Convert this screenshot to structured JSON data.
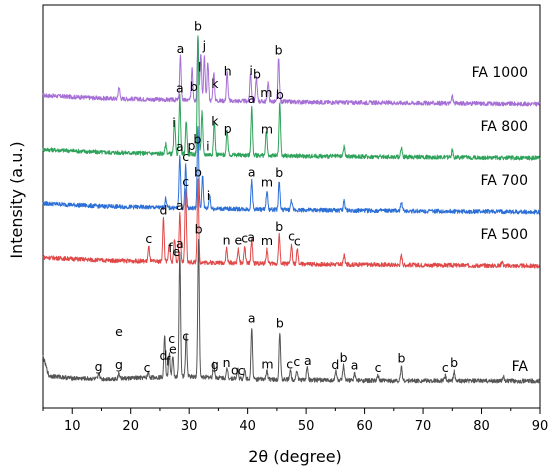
{
  "chart_data": {
    "type": "line",
    "xlabel": "2θ (degree)",
    "ylabel": "Intensity (a.u.)",
    "xlim": [
      5,
      90
    ],
    "x_ticks": [
      10,
      20,
      30,
      40,
      50,
      60,
      70,
      80,
      90
    ],
    "y_ticks_shown": false,
    "grid": false,
    "legend": "none",
    "series": [
      {
        "name": "FA 1000",
        "color": "#a66fd6",
        "offset": 5,
        "base": [
          [
            5,
            0.2
          ],
          [
            15,
            0.14
          ],
          [
            30,
            0.1
          ],
          [
            50,
            0.06
          ],
          [
            70,
            0.04
          ],
          [
            90,
            0.02
          ]
        ],
        "peaks": [
          [
            18,
            0.25
          ],
          [
            28.5,
            0.9
          ],
          [
            30.5,
            0.7
          ],
          [
            31.5,
            1.3
          ],
          [
            32,
            1.0
          ],
          [
            32.6,
            0.9
          ],
          [
            33.2,
            0.8
          ],
          [
            34.2,
            0.6
          ],
          [
            36.5,
            0.6
          ],
          [
            40.5,
            0.6
          ],
          [
            41.5,
            0.5
          ],
          [
            43.5,
            0.4
          ],
          [
            45.3,
            0.9
          ],
          [
            75,
            0.15
          ]
        ],
        "labels": [
          {
            "x": 28.5,
            "t": "a",
            "dy": 0
          },
          {
            "x": 30.8,
            "t": "b",
            "dy": -3
          },
          {
            "x": 31.8,
            "t": "l",
            "dy": -6
          },
          {
            "x": 32.6,
            "t": "j",
            "dy": -3
          },
          {
            "x": 34.4,
            "t": "k",
            "dy": 0
          },
          {
            "x": 36.6,
            "t": "h",
            "dy": 0
          },
          {
            "x": 40.6,
            "t": "i",
            "dy": -1
          },
          {
            "x": 41.6,
            "t": "b",
            "dy": -1
          },
          {
            "x": 43.2,
            "t": "m",
            "dy": 1
          },
          {
            "x": 45.3,
            "t": "b",
            "dy": 0
          }
        ]
      },
      {
        "name": "FA 800",
        "color": "#2fa35b",
        "offset": 4,
        "base": [
          [
            5,
            0.2
          ],
          [
            15,
            0.14
          ],
          [
            30,
            0.1
          ],
          [
            50,
            0.06
          ],
          [
            70,
            0.04
          ],
          [
            90,
            0.02
          ]
        ],
        "peaks": [
          [
            26,
            0.2
          ],
          [
            27.5,
            0.7
          ],
          [
            28.4,
            1.2
          ],
          [
            29.5,
            0.7
          ],
          [
            31.5,
            2.5
          ],
          [
            32.2,
            0.9
          ],
          [
            34.3,
            0.7
          ],
          [
            36.5,
            0.5
          ],
          [
            40.7,
            1.0
          ],
          [
            43.2,
            0.5
          ],
          [
            45.5,
            1.1
          ],
          [
            56.5,
            0.2
          ],
          [
            66.3,
            0.2
          ],
          [
            75,
            0.15
          ]
        ],
        "labels": [
          {
            "x": 27.4,
            "t": "i",
            "dy": 2
          },
          {
            "x": 28.4,
            "t": "a",
            "dy": 0
          },
          {
            "x": 30.4,
            "t": "p",
            "dy": 0
          },
          {
            "x": 31.5,
            "t": "b",
            "dy": 0
          },
          {
            "x": 33.2,
            "t": "i",
            "dy": 0
          },
          {
            "x": 34.4,
            "t": "k",
            "dy": 0
          },
          {
            "x": 36.6,
            "t": "p",
            "dy": 0
          },
          {
            "x": 40.7,
            "t": "a",
            "dy": 0
          },
          {
            "x": 43.3,
            "t": "m",
            "dy": 0
          },
          {
            "x": 45.5,
            "t": "b",
            "dy": 0
          }
        ]
      },
      {
        "name": "FA 700",
        "color": "#2c6fd6",
        "offset": 3,
        "base": [
          [
            5,
            0.2
          ],
          [
            15,
            0.14
          ],
          [
            30,
            0.1
          ],
          [
            50,
            0.06
          ],
          [
            70,
            0.04
          ],
          [
            90,
            0.02
          ]
        ],
        "peaks": [
          [
            26,
            0.2
          ],
          [
            28.4,
            1.1
          ],
          [
            29.4,
            0.9
          ],
          [
            31.5,
            1.7
          ],
          [
            32.3,
            0.7
          ],
          [
            33.5,
            0.3
          ],
          [
            40.7,
            0.6
          ],
          [
            43.3,
            0.4
          ],
          [
            45.4,
            0.6
          ],
          [
            47.5,
            0.2
          ],
          [
            56.5,
            0.2
          ],
          [
            66.3,
            0.2
          ]
        ],
        "labels": [
          {
            "x": 28.4,
            "t": "a",
            "dy": 0
          },
          {
            "x": 29.4,
            "t": "c",
            "dy": 0
          },
          {
            "x": 31.4,
            "t": "b",
            "dy": 0
          },
          {
            "x": 33.3,
            "t": "i",
            "dy": 0
          },
          {
            "x": 40.7,
            "t": "a",
            "dy": 0
          },
          {
            "x": 43.3,
            "t": "m",
            "dy": 0
          },
          {
            "x": 45.4,
            "t": "b",
            "dy": 0
          }
        ]
      },
      {
        "name": "FA 500",
        "color": "#e04848",
        "offset": 2,
        "base": [
          [
            5,
            0.2
          ],
          [
            15,
            0.14
          ],
          [
            30,
            0.1
          ],
          [
            50,
            0.06
          ],
          [
            70,
            0.04
          ],
          [
            90,
            0.02
          ]
        ],
        "peaks": [
          [
            23.1,
            0.3
          ],
          [
            25.6,
            0.9
          ],
          [
            26.6,
            0.4
          ],
          [
            27.5,
            0.5
          ],
          [
            28.4,
            1.0
          ],
          [
            29.4,
            1.5
          ],
          [
            31.5,
            1.7
          ],
          [
            36.4,
            0.3
          ],
          [
            38.4,
            0.3
          ],
          [
            39.5,
            0.35
          ],
          [
            40.7,
            0.5
          ],
          [
            43.3,
            0.3
          ],
          [
            45.4,
            0.6
          ],
          [
            47.5,
            0.4
          ],
          [
            48.5,
            0.3
          ],
          [
            56.5,
            0.2
          ],
          [
            66.3,
            0.2
          ],
          [
            83.5,
            0.1
          ]
        ],
        "labels": [
          {
            "x": 23.1,
            "t": "c",
            "dy": 0
          },
          {
            "x": 25.6,
            "t": "d",
            "dy": 0
          },
          {
            "x": 26.8,
            "t": "f",
            "dy": 0
          },
          {
            "x": 27.8,
            "t": "e",
            "dy": 0
          },
          {
            "x": 28.4,
            "t": "a",
            "dy": 0
          },
          {
            "x": 29.4,
            "t": "c",
            "dy": 0
          },
          {
            "x": 31.5,
            "t": "b",
            "dy": 0
          },
          {
            "x": 36.4,
            "t": "n",
            "dy": 0
          },
          {
            "x": 38.4,
            "t": "e",
            "dy": 0
          },
          {
            "x": 39.5,
            "t": "c",
            "dy": 0
          },
          {
            "x": 40.6,
            "t": "a",
            "dy": 0
          },
          {
            "x": 43.3,
            "t": "m",
            "dy": 0
          },
          {
            "x": 45.4,
            "t": "b",
            "dy": 0
          },
          {
            "x": 47.5,
            "t": "c",
            "dy": 0
          },
          {
            "x": 48.5,
            "t": "c",
            "dy": 0
          }
        ]
      },
      {
        "name": "FA",
        "color": "#555555",
        "offset": 0,
        "base": [
          [
            5,
            0.55
          ],
          [
            6,
            0.15
          ],
          [
            10,
            0.1
          ],
          [
            15,
            0.08
          ],
          [
            25,
            0.12
          ],
          [
            30,
            0.14
          ],
          [
            40,
            0.08
          ],
          [
            60,
            0.05
          ],
          [
            90,
            0.04
          ]
        ],
        "peaks": [
          [
            14.6,
            0.12
          ],
          [
            18,
            0.12
          ],
          [
            23,
            0.1
          ],
          [
            25.8,
            0.9
          ],
          [
            26.6,
            0.5
          ],
          [
            27.2,
            0.4
          ],
          [
            28.4,
            2.6
          ],
          [
            29.5,
            0.9
          ],
          [
            31.6,
            2.9
          ],
          [
            34.2,
            0.3
          ],
          [
            36.5,
            0.2
          ],
          [
            38.3,
            0.2
          ],
          [
            39.5,
            0.2
          ],
          [
            40.7,
            1.1
          ],
          [
            43.3,
            0.2
          ],
          [
            45.5,
            1.0
          ],
          [
            47.3,
            0.2
          ],
          [
            48.4,
            0.2
          ],
          [
            50.2,
            0.3
          ],
          [
            55.1,
            0.2
          ],
          [
            56.4,
            0.3
          ],
          [
            58.3,
            0.15
          ],
          [
            62.3,
            0.1
          ],
          [
            66.3,
            0.3
          ],
          [
            73.8,
            0.1
          ],
          [
            75.3,
            0.2
          ],
          [
            83.7,
            0.1
          ]
        ],
        "labels": [
          {
            "x": 14.5,
            "t": "g",
            "dy": 0
          },
          {
            "x": 18,
            "t": "g",
            "dy": 0
          },
          {
            "x": 18,
            "t": "e",
            "dy": -33
          },
          {
            "x": 22.8,
            "t": "c",
            "dy": 0
          },
          {
            "x": 25.6,
            "t": "d",
            "dy": 0
          },
          {
            "x": 26.4,
            "t": "f",
            "dy": 0
          },
          {
            "x": 27.0,
            "t": "c",
            "dy": -24
          },
          {
            "x": 27.2,
            "t": "e",
            "dy": 0
          },
          {
            "x": 28.4,
            "t": "a",
            "dy": 0
          },
          {
            "x": 29.4,
            "t": "c",
            "dy": 0
          },
          {
            "x": 31.6,
            "t": "b",
            "dy": 0
          },
          {
            "x": 34.4,
            "t": "g",
            "dy": 0
          },
          {
            "x": 36.4,
            "t": "n",
            "dy": 0
          },
          {
            "x": 37.8,
            "t": "o",
            "dy": 0
          },
          {
            "x": 38.9,
            "t": "c",
            "dy": 0
          },
          {
            "x": 40.7,
            "t": "a",
            "dy": 0
          },
          {
            "x": 43.4,
            "t": "m",
            "dy": 0
          },
          {
            "x": 45.5,
            "t": "b",
            "dy": 0
          },
          {
            "x": 47.2,
            "t": "c",
            "dy": 0
          },
          {
            "x": 48.4,
            "t": "c",
            "dy": 0
          },
          {
            "x": 50.3,
            "t": "a",
            "dy": 0
          },
          {
            "x": 55.0,
            "t": "d",
            "dy": 0
          },
          {
            "x": 56.4,
            "t": "b",
            "dy": 0
          },
          {
            "x": 58.3,
            "t": "a",
            "dy": 0
          },
          {
            "x": 62.3,
            "t": "c",
            "dy": 0
          },
          {
            "x": 66.3,
            "t": "b",
            "dy": 0
          },
          {
            "x": 73.8,
            "t": "c",
            "dy": 0
          },
          {
            "x": 75.3,
            "t": "b",
            "dy": 0
          }
        ]
      }
    ]
  }
}
